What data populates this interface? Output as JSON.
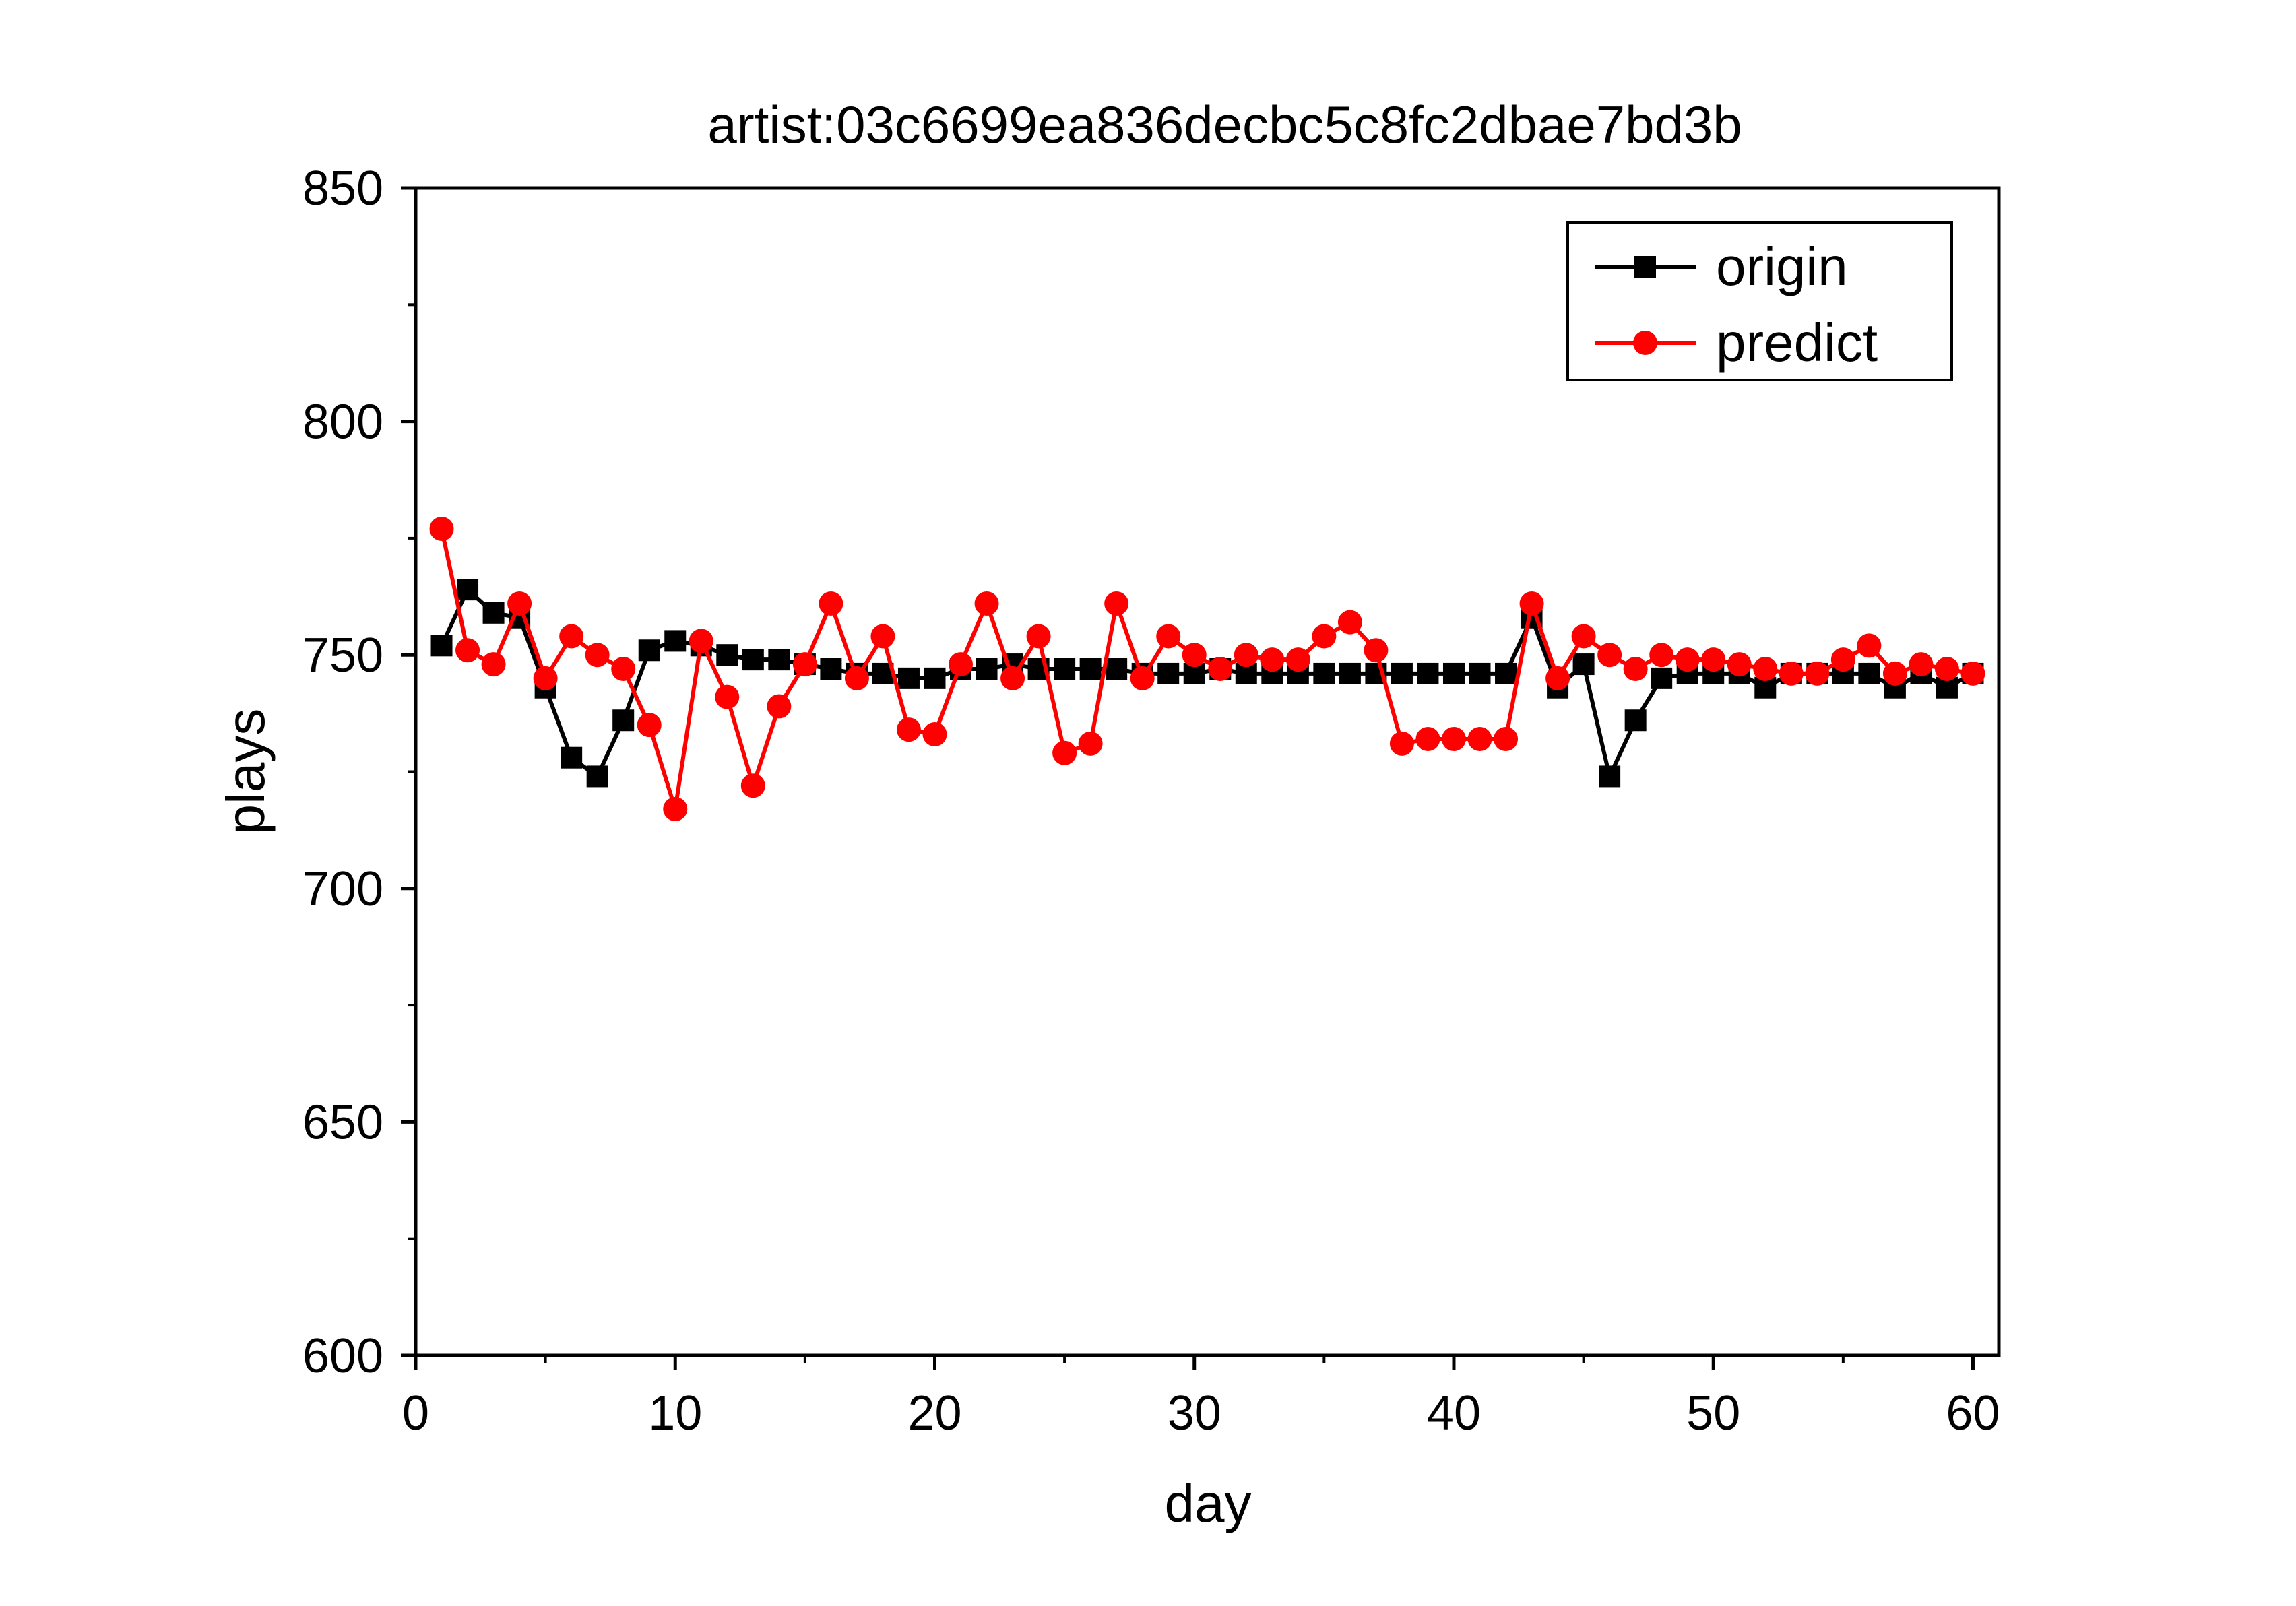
{
  "chart_data": {
    "type": "line",
    "title": "artist:03c6699ea836decbc5c8fc2dbae7bd3b",
    "xlabel": "day",
    "ylabel": "plays",
    "xlim": [
      0,
      61
    ],
    "ylim": [
      600,
      850
    ],
    "xticks": [
      0,
      10,
      20,
      30,
      40,
      50,
      60
    ],
    "yticks": [
      600,
      650,
      700,
      750,
      800,
      850
    ],
    "x_tick_labels": [
      "0",
      "10",
      "20",
      "30",
      "40",
      "50",
      "60"
    ],
    "y_tick_labels": [
      "600",
      "650",
      "700",
      "750",
      "800",
      "850"
    ],
    "grid": false,
    "legend_position": "top-right",
    "x": [
      1,
      2,
      3,
      4,
      5,
      6,
      7,
      8,
      9,
      10,
      11,
      12,
      13,
      14,
      15,
      16,
      17,
      18,
      19,
      20,
      21,
      22,
      23,
      24,
      25,
      26,
      27,
      28,
      29,
      30,
      31,
      32,
      33,
      34,
      35,
      36,
      37,
      38,
      39,
      40,
      41,
      42,
      43,
      44,
      45,
      46,
      47,
      48,
      49,
      50,
      51,
      52,
      53,
      54,
      55,
      56,
      57,
      58,
      59,
      60
    ],
    "series": [
      {
        "name": "origin",
        "color": "#000000",
        "marker": "square",
        "values": [
          752,
          764,
          759,
          758,
          743,
          728,
          724,
          736,
          751,
          753,
          752,
          750,
          749,
          749,
          748,
          747,
          746,
          746,
          745,
          745,
          747,
          747,
          748,
          747,
          747,
          747,
          747,
          746,
          746,
          746,
          747,
          746,
          746,
          746,
          746,
          746,
          746,
          746,
          746,
          746,
          746,
          746,
          758,
          743,
          748,
          724,
          736,
          745,
          746,
          746,
          746,
          743,
          746,
          746,
          746,
          746,
          743,
          746,
          743,
          746
        ]
      },
      {
        "name": "predict",
        "color": "#ff0000",
        "marker": "circle",
        "values": [
          777,
          751,
          748,
          761,
          745,
          754,
          750,
          747,
          735,
          717,
          753,
          741,
          722,
          739,
          748,
          761,
          745,
          754,
          734,
          733,
          748,
          761,
          745,
          754,
          729,
          731,
          761,
          745,
          754,
          750,
          747,
          750,
          749,
          749,
          754,
          757,
          751,
          731,
          732,
          732,
          732,
          732,
          761,
          745,
          754,
          750,
          747,
          750,
          749,
          749,
          748,
          747,
          746,
          746,
          749,
          752,
          746,
          748,
          747,
          746
        ]
      }
    ]
  }
}
